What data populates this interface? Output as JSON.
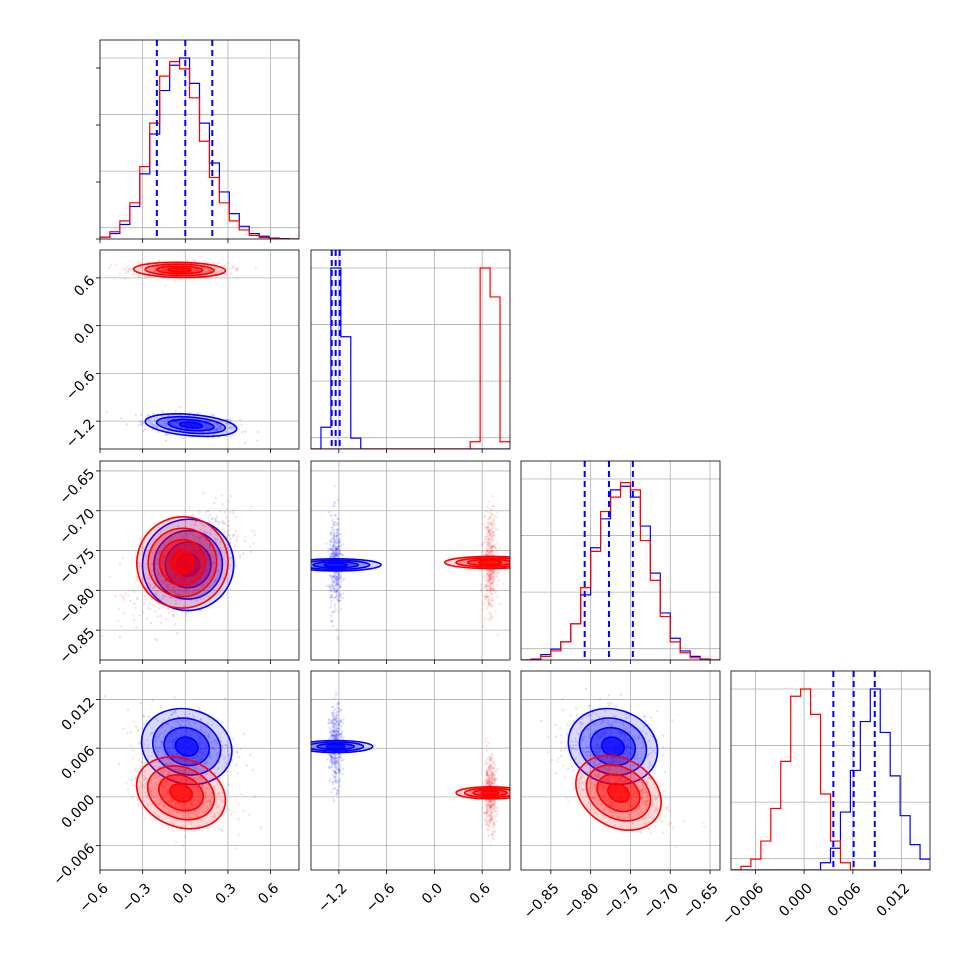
{
  "chart_data": {
    "type": "corner",
    "grid": true,
    "series": [
      {
        "name": "",
        "color": "#0000ff"
      },
      {
        "name": "",
        "color": "#ff0000"
      }
    ],
    "parameters": [
      {
        "index": 0,
        "xlim": [
          -0.6,
          0.8
        ],
        "ticks": [
          "−0.6",
          "−0.3",
          "0.0",
          "0.3",
          "0.6"
        ],
        "tick_values": [
          -0.6,
          -0.3,
          0.0,
          0.3,
          0.6
        ]
      },
      {
        "index": 1,
        "xlim": [
          -1.55,
          0.95
        ],
        "ticks": [
          "−1.2",
          "−0.6",
          "0.0",
          "0.6"
        ],
        "tick_values": [
          -1.2,
          -0.6,
          0.0,
          0.6
        ]
      },
      {
        "index": 2,
        "xlim": [
          -0.8875,
          -0.6375
        ],
        "ticks": [
          "−0.85",
          "−0.80",
          "−0.75",
          "−0.70",
          "−0.65"
        ],
        "tick_values": [
          -0.85,
          -0.8,
          -0.75,
          -0.7,
          -0.65
        ]
      },
      {
        "index": 3,
        "xlim": [
          -0.009,
          0.0155
        ],
        "ticks": [
          "−0.006",
          "0.000",
          "0.006",
          "0.012"
        ],
        "tick_values": [
          -0.006,
          0.0,
          0.006,
          0.012
        ]
      }
    ],
    "row_tick_labels": {
      "1": [
        "0.6",
        "0.0",
        "−0.6",
        "−1.2"
      ],
      "2": [
        "−0.65",
        "−0.70",
        "−0.75",
        "−0.80",
        "−0.85"
      ],
      "3": [
        "0.012",
        "0.006",
        "0.000",
        "−0.006"
      ]
    },
    "histograms": {
      "0": {
        "bin_edges": [
          -0.6,
          -0.53,
          -0.46,
          -0.39,
          -0.32,
          -0.25,
          -0.18,
          -0.11,
          -0.04,
          0.03,
          0.1,
          0.17,
          0.24,
          0.31,
          0.38,
          0.45,
          0.52,
          0.59,
          0.66,
          0.73,
          0.8
        ],
        "blue": [
          0.01,
          0.03,
          0.08,
          0.18,
          0.36,
          0.58,
          0.82,
          0.96,
          1.0,
          0.86,
          0.64,
          0.42,
          0.26,
          0.14,
          0.07,
          0.03,
          0.015,
          0.005,
          0.002,
          0.0
        ],
        "red": [
          0.01,
          0.04,
          0.1,
          0.2,
          0.4,
          0.64,
          0.9,
          0.98,
          0.94,
          0.78,
          0.54,
          0.34,
          0.2,
          0.1,
          0.05,
          0.02,
          0.008,
          0.003,
          0.001,
          0.0
        ],
        "quantiles_blue": [
          -0.2,
          0.0,
          0.19
        ]
      },
      "1": {
        "bin_edges": [
          -1.55,
          -1.425,
          -1.3,
          -1.175,
          -1.05,
          -0.925,
          -0.8,
          -0.675,
          -0.55,
          -0.425,
          -0.3,
          -0.175,
          -0.05,
          0.075,
          0.2,
          0.325,
          0.45,
          0.575,
          0.7,
          0.825,
          0.95
        ],
        "blue": [
          0.0,
          0.12,
          1.0,
          0.62,
          0.06,
          0.0,
          0.0,
          0.0,
          0.0,
          0.0,
          0.0,
          0.0,
          0.0,
          0.0,
          0.0,
          0.0,
          0.0,
          0.0,
          0.0,
          0.0
        ],
        "red": [
          0.0,
          0.0,
          0.0,
          0.0,
          0.0,
          0.0,
          0.0,
          0.0,
          0.0,
          0.0,
          0.0,
          0.0,
          0.0,
          0.0,
          0.0,
          0.0,
          0.04,
          1.0,
          0.84,
          0.04
        ],
        "quantiles_blue": [
          -1.29,
          -1.24,
          -1.19
        ]
      },
      "2": {
        "bin_edges": [
          -0.8875,
          -0.875,
          -0.8625,
          -0.85,
          -0.8375,
          -0.825,
          -0.8125,
          -0.8,
          -0.7875,
          -0.775,
          -0.7625,
          -0.75,
          -0.7375,
          -0.725,
          -0.7125,
          -0.7,
          -0.6875,
          -0.675,
          -0.6625,
          -0.65,
          -0.6375
        ],
        "blue": [
          0.0,
          0.005,
          0.03,
          0.06,
          0.1,
          0.2,
          0.36,
          0.62,
          0.78,
          0.94,
          0.96,
          0.9,
          0.74,
          0.48,
          0.26,
          0.12,
          0.05,
          0.02,
          0.005,
          0.0
        ],
        "red": [
          0.0,
          0.003,
          0.02,
          0.05,
          0.1,
          0.2,
          0.4,
          0.6,
          0.82,
          0.9,
          0.98,
          0.94,
          0.66,
          0.44,
          0.24,
          0.1,
          0.04,
          0.012,
          0.003,
          0.0
        ],
        "quantiles_blue": [
          -0.8075,
          -0.777,
          -0.747
        ]
      },
      "3": {
        "bin_edges": [
          -0.009,
          -0.007775,
          -0.00655,
          -0.005325,
          -0.0041,
          -0.002875,
          -0.00165,
          -0.000425,
          0.0008,
          0.002025,
          0.00325,
          0.004475,
          0.0057,
          0.006925,
          0.00815,
          0.009375,
          0.0106,
          0.011825,
          0.01305,
          0.014275,
          0.0155
        ],
        "blue": [
          0.0,
          0.0,
          0.0,
          0.0,
          0.0,
          0.0,
          0.0,
          0.0,
          0.0,
          0.04,
          0.12,
          0.32,
          0.55,
          0.82,
          1.0,
          0.76,
          0.52,
          0.3,
          0.14,
          0.06
        ],
        "red": [
          0.0,
          0.02,
          0.06,
          0.16,
          0.34,
          0.6,
          0.96,
          1.0,
          0.86,
          0.42,
          0.16,
          0.04,
          0.0,
          0.0,
          0.0,
          0.0,
          0.0,
          0.0,
          0.0,
          0.0
        ],
        "quantiles_blue": [
          0.0036,
          0.0061,
          0.0087
        ]
      }
    },
    "clusters": {
      "1-0": {
        "blue": {
          "mx": 0.04,
          "my": -1.25,
          "sx": 0.17,
          "sy": 0.07,
          "rho": -0.35
        },
        "red": {
          "mx": -0.04,
          "my": 0.7,
          "sx": 0.17,
          "sy": 0.05,
          "rho": -0.1
        }
      },
      "2-0": {
        "blue": {
          "mx": 0.02,
          "my": -0.768,
          "sx": 0.17,
          "sy": 0.03,
          "rho": 0.55
        },
        "red": {
          "mx": -0.02,
          "my": -0.765,
          "sx": 0.17,
          "sy": 0.03,
          "rho": 0.55
        }
      },
      "3-0": {
        "blue": {
          "mx": 0.01,
          "my": 0.0062,
          "sx": 0.17,
          "sy": 0.0024,
          "rho": -0.15
        },
        "red": {
          "mx": -0.03,
          "my": 0.0005,
          "sx": 0.17,
          "sy": 0.0022,
          "rho": -0.3
        }
      },
      "2-1": {
        "blue": {
          "mx": -1.24,
          "my": -0.768,
          "sx": 0.04,
          "sy": 0.03,
          "rho": 0.0
        },
        "red": {
          "mx": 0.7,
          "my": -0.765,
          "sx": 0.04,
          "sy": 0.03,
          "rho": 0.0
        }
      },
      "3-1": {
        "blue": {
          "mx": -1.24,
          "my": 0.0062,
          "sx": 0.04,
          "sy": 0.0024,
          "rho": 0.0
        },
        "red": {
          "mx": 0.7,
          "my": 0.0005,
          "sx": 0.04,
          "sy": 0.0022,
          "rho": 0.0
        }
      },
      "3-2": {
        "blue": {
          "mx": -0.772,
          "my": 0.0062,
          "sx": 0.03,
          "sy": 0.0024,
          "rho": -0.15
        },
        "red": {
          "mx": -0.765,
          "my": 0.0005,
          "sx": 0.03,
          "sy": 0.0022,
          "rho": -0.55
        }
      }
    }
  }
}
